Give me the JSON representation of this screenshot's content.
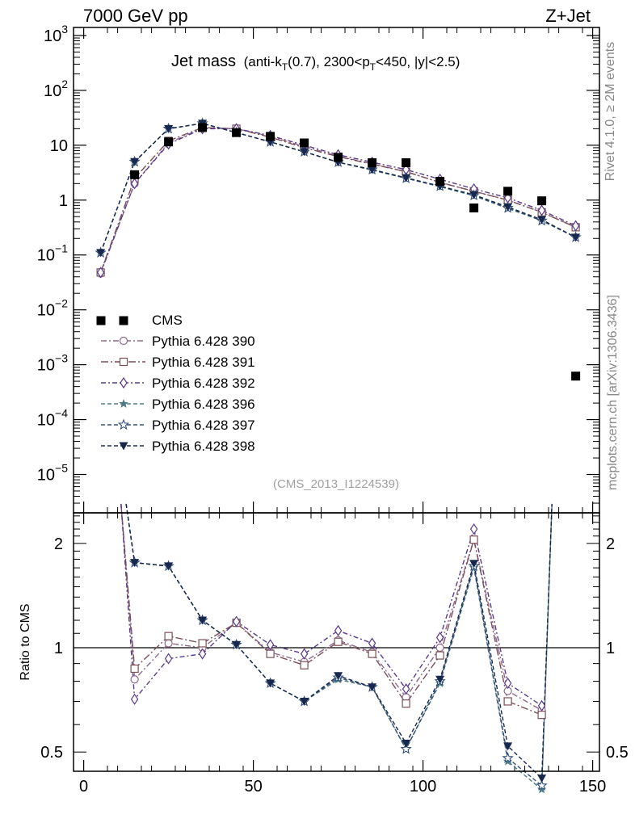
{
  "header": {
    "left": "7000 GeV pp",
    "right": "Z+Jet"
  },
  "side_labels": {
    "rivet": "Rivet 4.1.0, ≥ 2M events",
    "source": "mcplots.cern.ch [arXiv:1306.3436]"
  },
  "watermark": "(CMS_2013_I1224539)",
  "colors": {
    "cms": "#000000",
    "p390": "#8e6a8c",
    "p391": "#7a4f57",
    "p392": "#5a3a8c",
    "p396": "#4e7b85",
    "p397": "#33507a",
    "p398": "#17284c"
  },
  "chart_data": [
    {
      "type": "line",
      "title_main": "Jet mass",
      "title_detail": [
        "(anti-k",
        "T",
        "(0.7), 2300<p",
        "T",
        "<450, |y|<2.5)"
      ],
      "xlabel": "",
      "ylabel": "",
      "yscale": "log",
      "xlim": [
        -3,
        152
      ],
      "ylim": [
        2e-06,
        1400
      ],
      "x_ticks": [
        0,
        50,
        100,
        150
      ],
      "y_ticks": [
        {
          "value": 1e-05,
          "base": "10",
          "exp": "−5"
        },
        {
          "value": 0.0001,
          "base": "10",
          "exp": "−4"
        },
        {
          "value": 0.001,
          "base": "10",
          "exp": "−3"
        },
        {
          "value": 0.01,
          "base": "10",
          "exp": "−2"
        },
        {
          "value": 0.1,
          "base": "10",
          "exp": "−1"
        },
        {
          "value": 1,
          "base": "1",
          "exp": ""
        },
        {
          "value": 10,
          "base": "10",
          "exp": ""
        },
        {
          "value": 100,
          "base": "10",
          "exp": "2"
        },
        {
          "value": 1000,
          "base": "10",
          "exp": "3"
        }
      ],
      "x": [
        5,
        15,
        25,
        35,
        45,
        55,
        65,
        75,
        85,
        95,
        105,
        115,
        125,
        135,
        145
      ],
      "series": [
        {
          "name": "CMS",
          "key": "cms",
          "marker": "square",
          "dash": "none",
          "values": [
            null,
            2.9,
            11.5,
            21,
            17,
            14.5,
            11,
            6,
            4.8,
            4.8,
            2.2,
            0.72,
            1.45,
            0.97,
            0.00062
          ]
        },
        {
          "name": "Pythia 6.428 390",
          "key": "p390",
          "marker": "circle",
          "dash": "7,3,2,3",
          "values": [
            0.046,
            2.0,
            11.0,
            20.5,
            20.0,
            14.5,
            9.5,
            6.3,
            4.6,
            3.3,
            2.1,
            1.45,
            1.0,
            0.6,
            0.32
          ]
        },
        {
          "name": "Pythia 6.428 391",
          "key": "p391",
          "marker": "open-square",
          "dash": "9,3,2,3",
          "values": [
            0.048,
            2.5,
            12.0,
            21.0,
            20.0,
            14.0,
            9.0,
            6.2,
            4.5,
            3.3,
            2.1,
            1.45,
            1.0,
            0.6,
            0.32
          ]
        },
        {
          "name": "Pythia 6.428 392",
          "key": "p392",
          "marker": "diamond",
          "dash": "6,3,2,3",
          "values": [
            0.048,
            2.0,
            10.5,
            20.0,
            20.0,
            15.0,
            10.0,
            6.7,
            4.9,
            3.6,
            2.4,
            1.6,
            1.1,
            0.65,
            0.34
          ]
        },
        {
          "name": "Pythia 6.428 396",
          "key": "p396",
          "marker": "star",
          "dash": "5,3",
          "values": [
            0.11,
            5.0,
            20.0,
            25.0,
            17.0,
            11.5,
            7.6,
            4.9,
            3.5,
            2.5,
            1.75,
            1.2,
            0.7,
            0.43,
            0.21
          ]
        },
        {
          "name": "Pythia 6.428 397",
          "key": "p397",
          "marker": "open-star",
          "dash": "5,3",
          "values": [
            0.11,
            5.0,
            20.0,
            25.0,
            17.0,
            11.5,
            7.6,
            4.9,
            3.6,
            2.5,
            1.8,
            1.22,
            0.72,
            0.42,
            0.21
          ]
        },
        {
          "name": "Pythia 6.428 398",
          "key": "p398",
          "marker": "triangle-down",
          "dash": "5,3",
          "values": [
            0.11,
            5.0,
            20.0,
            25.0,
            17.0,
            11.5,
            7.6,
            4.9,
            3.6,
            2.55,
            1.8,
            1.25,
            0.75,
            0.44,
            0.21
          ]
        }
      ]
    },
    {
      "type": "line",
      "title": "",
      "xlabel": "",
      "ylabel": "Ratio to CMS",
      "yscale": "log",
      "xlim": [
        -3,
        152
      ],
      "ylim": [
        0.44,
        2.45
      ],
      "x_ticks": [
        0,
        50,
        100,
        150
      ],
      "y_ticks": [
        0.5,
        1,
        2
      ],
      "y_tick_labels": [
        "0.5",
        "1",
        "2"
      ],
      "reference_line": 1,
      "x": [
        5,
        15,
        25,
        35,
        45,
        55,
        65,
        75,
        85,
        95,
        105,
        115,
        125,
        135,
        145
      ],
      "series": [
        {
          "name": "Pythia 6.428 390",
          "key": "p390",
          "marker": "circle",
          "dash": "7,3,2,3",
          "values": [
            null,
            0.81,
            1.03,
            1.0,
            1.18,
            0.97,
            0.91,
            1.05,
            0.97,
            0.72,
            1.0,
            2.05,
            0.75,
            0.66,
            null
          ],
          "edge_in": [
            11,
            2.6
          ],
          "edge_out": null
        },
        {
          "name": "Pythia 6.428 391",
          "key": "p391",
          "marker": "open-square",
          "dash": "9,3,2,3",
          "values": [
            null,
            0.87,
            1.08,
            1.03,
            1.18,
            0.96,
            0.89,
            1.04,
            0.96,
            0.69,
            0.95,
            2.05,
            0.7,
            0.64,
            null
          ],
          "edge_in": [
            11,
            2.6
          ],
          "edge_out": null
        },
        {
          "name": "Pythia 6.428 392",
          "key": "p392",
          "marker": "diamond",
          "dash": "6,3,2,3",
          "values": [
            null,
            0.71,
            0.93,
            0.96,
            1.19,
            1.02,
            0.96,
            1.12,
            1.03,
            0.76,
            1.07,
            2.2,
            0.79,
            0.68,
            null
          ],
          "edge_in": [
            11,
            2.6
          ],
          "edge_out": null
        },
        {
          "name": "Pythia 6.428 396",
          "key": "p396",
          "marker": "star",
          "dash": "5,3",
          "values": [
            null,
            1.76,
            1.72,
            1.2,
            1.02,
            0.79,
            0.7,
            0.81,
            0.77,
            0.51,
            0.79,
            1.7,
            0.47,
            0.39,
            null
          ],
          "edge_in": [
            12.5,
            2.6
          ],
          "edge_out": [
            138,
            2.6
          ]
        },
        {
          "name": "Pythia 6.428 397",
          "key": "p397",
          "marker": "open-star",
          "dash": "5,3",
          "values": [
            null,
            1.76,
            1.72,
            1.2,
            1.02,
            0.79,
            0.7,
            0.82,
            0.77,
            0.51,
            0.8,
            1.72,
            0.48,
            0.4,
            null
          ],
          "edge_in": [
            12.5,
            2.6
          ],
          "edge_out": [
            138,
            2.6
          ]
        },
        {
          "name": "Pythia 6.428 398",
          "key": "p398",
          "marker": "triangle-down",
          "dash": "5,3",
          "values": [
            null,
            1.76,
            1.72,
            1.2,
            1.02,
            0.79,
            0.7,
            0.83,
            0.77,
            0.53,
            0.81,
            1.75,
            0.52,
            0.42,
            null
          ],
          "edge_in": [
            12.5,
            2.6
          ],
          "edge_out": [
            138,
            2.6
          ]
        }
      ]
    }
  ]
}
